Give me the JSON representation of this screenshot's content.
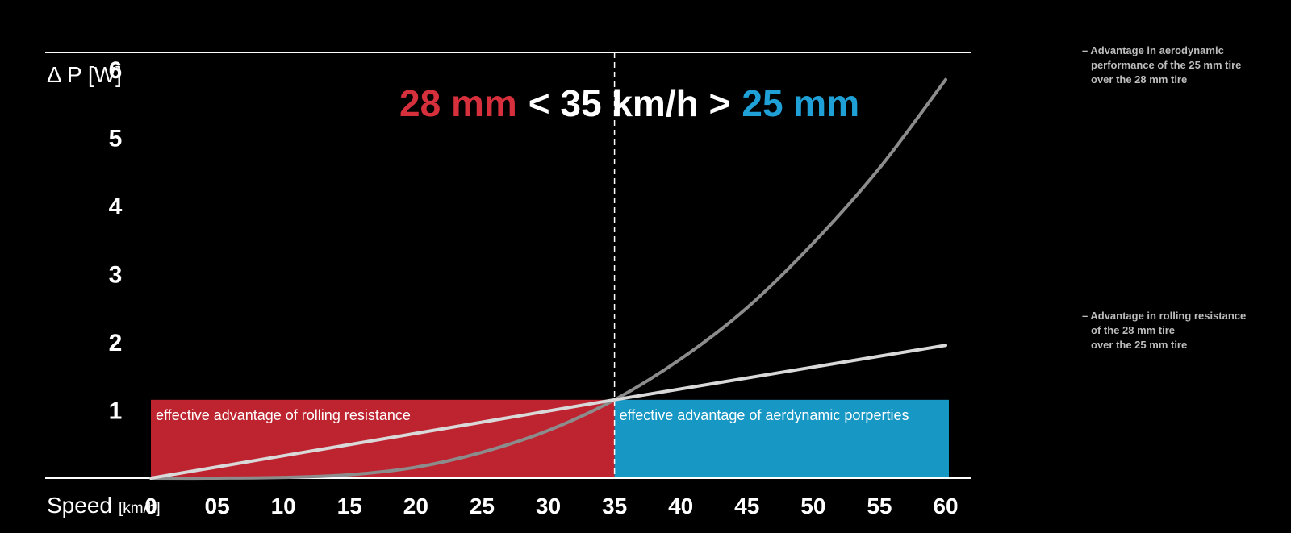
{
  "colors": {
    "background": "#000000",
    "rolling_zone": "#bd2430",
    "aero_zone": "#1797c4",
    "headline_left": "#d6303c",
    "headline_right": "#1fa0d6",
    "aero_curve": "#8c8c8c",
    "rolling_curve": "#d9d9d9"
  },
  "chart_data": {
    "type": "line",
    "xlabel": "Speed",
    "xlabel_unit": "[km/h]",
    "ylabel": "Δ P [W]",
    "xlim": [
      0,
      60
    ],
    "ylim": [
      0,
      6
    ],
    "x_ticks": [
      "0",
      "05",
      "10",
      "15",
      "20",
      "25",
      "30",
      "35",
      "40",
      "45",
      "50",
      "55",
      "60"
    ],
    "y_ticks": [
      "1",
      "2",
      "3",
      "4",
      "5",
      "6"
    ],
    "headline": {
      "left": "28 mm",
      "middle": "< 35 km/h >",
      "right": "25 mm"
    },
    "crossover_speed": 35,
    "zones": [
      {
        "label": "effective advantage of rolling resistance",
        "x_start": 0,
        "x_end": 35,
        "y_top": 1.15,
        "color": "#bd2430"
      },
      {
        "label": "effective advantage of aerdynamic porperties",
        "x_start": 35,
        "x_end": 60,
        "y_top": 1.15,
        "color": "#1797c4"
      }
    ],
    "series": [
      {
        "name": "Advantage in aerodynamic performance of the 25 mm tire over the 28 mm tire",
        "color": "#8c8c8c",
        "x": [
          0,
          5,
          10,
          15,
          20,
          25,
          30,
          35,
          40,
          45,
          50,
          55,
          60
        ],
        "y": [
          0,
          0.0,
          0.01,
          0.05,
          0.16,
          0.38,
          0.7,
          1.15,
          1.75,
          2.5,
          3.45,
          4.55,
          5.85
        ]
      },
      {
        "name": "Advantage in rolling resistance of the 28 mm tire over the 25 mm tire",
        "color": "#d9d9d9",
        "x": [
          0,
          35,
          60
        ],
        "y": [
          0,
          1.15,
          1.95
        ]
      }
    ]
  },
  "legend": {
    "aero": [
      "– Advantage in aerodynamic",
      "performance of the 25 mm tire",
      "over the 28 mm tire"
    ],
    "rolling": [
      "– Advantage in rolling resistance",
      "of the 28 mm tire",
      "over the 25 mm tire"
    ]
  }
}
